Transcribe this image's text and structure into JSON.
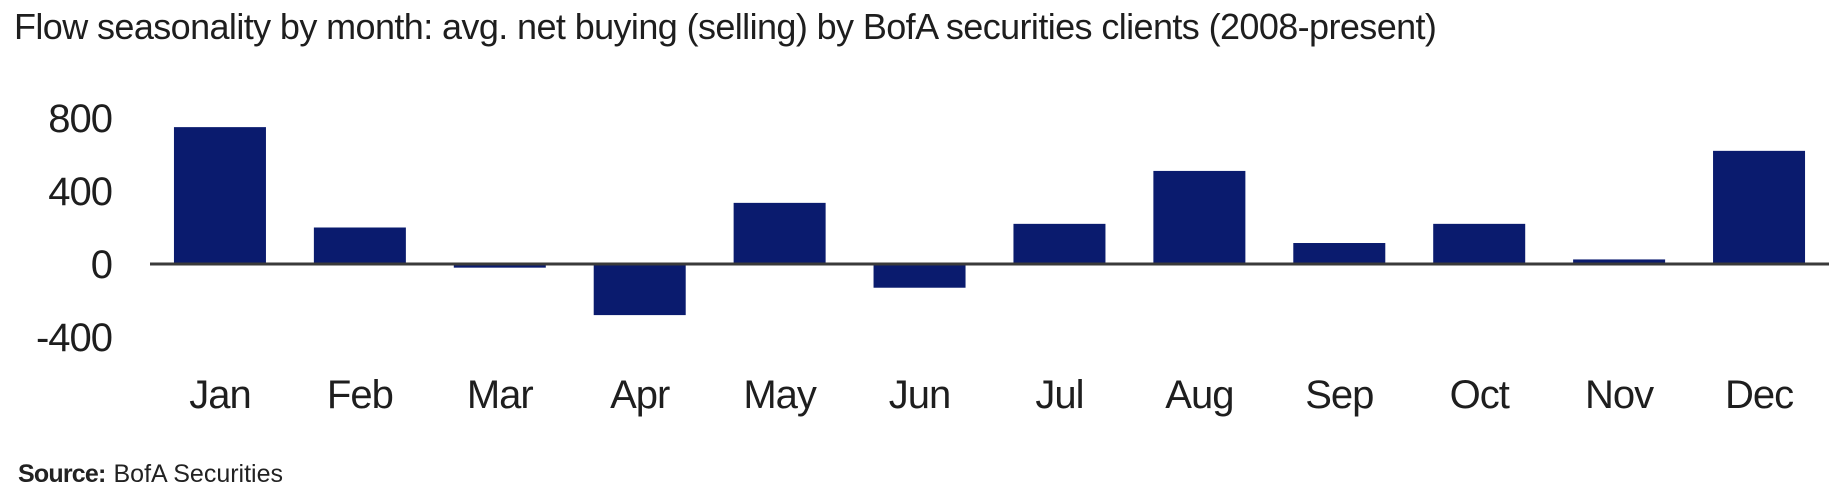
{
  "chart_data": {
    "type": "bar",
    "title": "Flow seasonality by month: avg. net buying (selling) by BofA securities clients (2008-present)",
    "categories": [
      "Jan",
      "Feb",
      "Mar",
      "Apr",
      "May",
      "Jun",
      "Jul",
      "Aug",
      "Sep",
      "Oct",
      "Nov",
      "Dec"
    ],
    "values": [
      750,
      200,
      -20,
      -280,
      335,
      -130,
      220,
      510,
      115,
      220,
      25,
      620
    ],
    "xlabel": "",
    "ylabel": "",
    "yticks": [
      "800",
      "400",
      "0",
      "-400"
    ],
    "ytick_values": [
      800,
      400,
      0,
      -400
    ],
    "ylim": [
      -500,
      850
    ],
    "grid": false,
    "legend": "none",
    "bar_color": "#0a1b6e",
    "axis_color": "#3a3a3a"
  },
  "source": {
    "label": "Source:",
    "value": "BofA Securities"
  }
}
